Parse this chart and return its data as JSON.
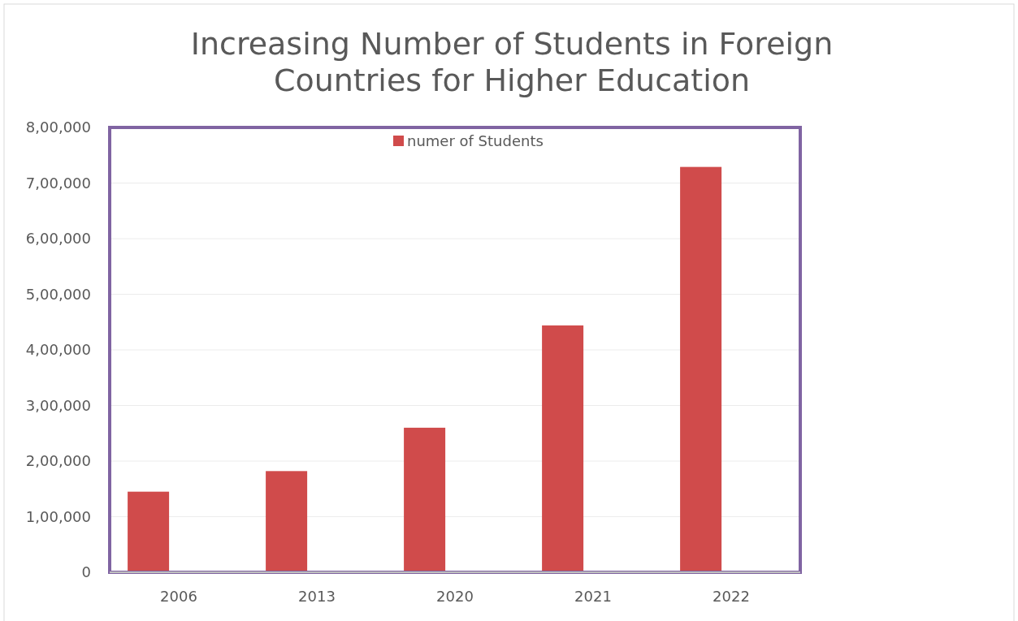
{
  "chart_data": {
    "type": "bar",
    "title": "Increasing Number of Students  in Foreign Countries for Higher Education",
    "categories": [
      "2006",
      "2013",
      "2020",
      "2021",
      "2022"
    ],
    "series": [
      {
        "name": "numer of Students",
        "color": "#d04b4b",
        "values": [
          145000,
          182000,
          260000,
          444000,
          729000
        ]
      }
    ],
    "ylim": [
      0,
      800000
    ],
    "yticks": [
      {
        "value": 0,
        "label": "0"
      },
      {
        "value": 100000,
        "label": "1,00,000"
      },
      {
        "value": 200000,
        "label": "2,00,000"
      },
      {
        "value": 300000,
        "label": "3,00,000"
      },
      {
        "value": 400000,
        "label": "4,00,000"
      },
      {
        "value": 500000,
        "label": "5,00,000"
      },
      {
        "value": 600000,
        "label": "6,00,000"
      },
      {
        "value": 700000,
        "label": "7,00,000"
      },
      {
        "value": 800000,
        "label": "8,00,000"
      }
    ],
    "grid": "y",
    "legend": "top"
  }
}
